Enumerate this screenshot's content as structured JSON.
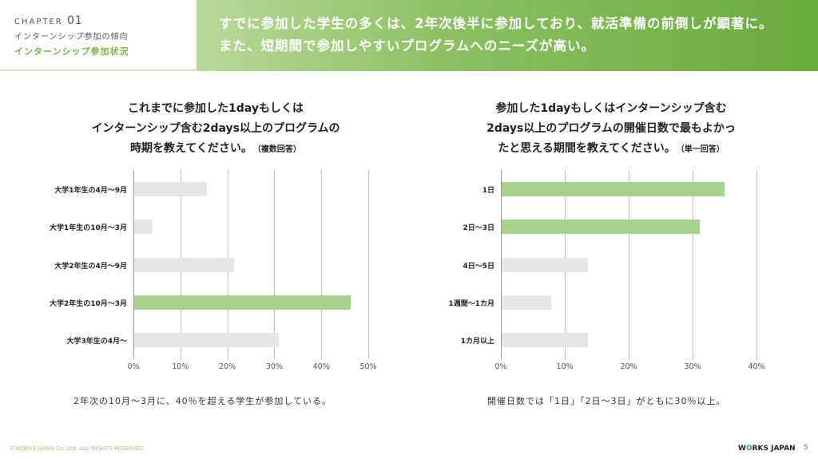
{
  "header": {
    "chapter_label": "CHAPTER",
    "chapter_num": "01",
    "section": "インターンシップ参加の傾向",
    "subsection": "インターンシップ参加状況",
    "headline_1": "すでに参加した学生の多くは、2年次後半に参加しており、就活準備の前倒しが顕著に。",
    "headline_2": "また、短期間で参加しやすいプログラムへのニーズが高い。"
  },
  "chart_data": [
    {
      "type": "bar",
      "title_lines": [
        "これまでに参加した1dayもしくは",
        "インターンシップ含む2days以上のプログラムの",
        "時期を教えてください。"
      ],
      "title_note": "（複数回答）",
      "categories": [
        "大学1年生の4月～9月",
        "大学1年生の10月～3月",
        "大学2年生の4月～9月",
        "大学2年生の10月～3月",
        "大学3年生の4月～"
      ],
      "values": [
        15.5,
        3.9,
        21.3,
        46.1,
        30.8
      ],
      "highlight": [
        false,
        false,
        false,
        true,
        false
      ],
      "xlim": [
        0,
        50
      ],
      "ticks": [
        "0%",
        "10%",
        "20%",
        "30%",
        "40%",
        "50%"
      ],
      "note": "2年次の10月～3月に、40％を超える学生が参加している。"
    },
    {
      "type": "bar",
      "title_lines": [
        "参加した1dayもしくはインターンシップ含む",
        "2days以上のプログラムの開催日数で最もよかっ",
        "たと思える期間を教えてください。"
      ],
      "title_note": "（単一回答）",
      "categories": [
        "1日",
        "2日～3日",
        "4日～5日",
        "1週間～1カ月",
        "1カ月以上"
      ],
      "values": [
        34.9,
        31.0,
        13.5,
        7.8,
        13.5
      ],
      "highlight": [
        true,
        true,
        false,
        false,
        false
      ],
      "xlim": [
        0,
        40
      ],
      "ticks": [
        "0%",
        "10%",
        "20%",
        "30%",
        "40%"
      ],
      "note": "開催日数では「1日」「2日～3日」がともに30％以上。"
    }
  ],
  "colors": {
    "highlight": "#a9d18e",
    "normal": "#e6e6e6"
  },
  "footer": {
    "copyright": "©WORKS JAPAN Co.,Ltd. ALL RIGHTS RESERVED.",
    "logo_pre": "W",
    "logo_o": "O",
    "logo_post": "RKS JAPAN",
    "page": "5"
  }
}
